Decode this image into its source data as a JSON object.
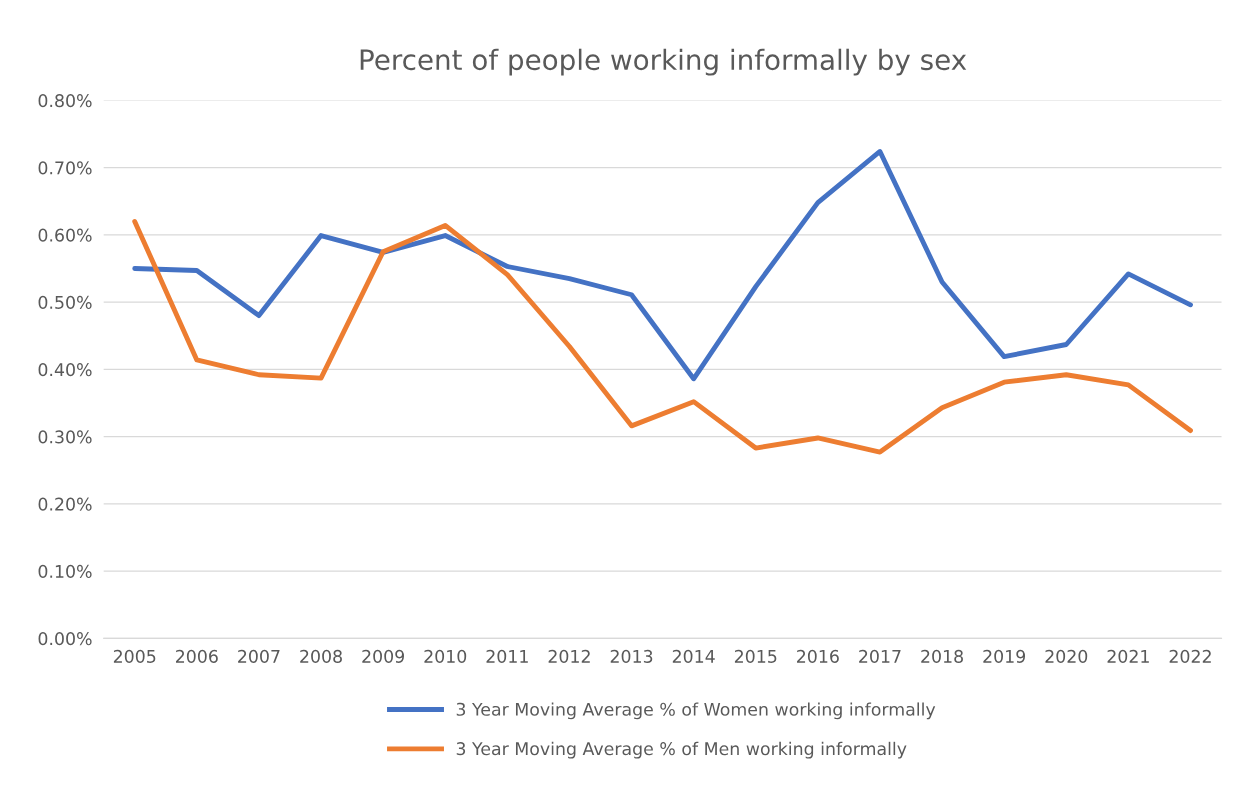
{
  "chart_data": {
    "type": "line",
    "title": "Percent of people working informally by sex",
    "categories": [
      "2005",
      "2006",
      "2007",
      "2008",
      "2009",
      "2010",
      "2011",
      "2012",
      "2013",
      "2014",
      "2015",
      "2016",
      "2017",
      "2018",
      "2019",
      "2020",
      "2021",
      "2022"
    ],
    "series": [
      {
        "name": "3 Year Moving Average % of Women working informally",
        "color": "#4472c4",
        "values": [
          0.55,
          0.547,
          0.48,
          0.599,
          0.574,
          0.599,
          0.553,
          0.535,
          0.511,
          0.386,
          0.523,
          0.648,
          0.724,
          0.53,
          0.419,
          0.437,
          0.542,
          0.496
        ]
      },
      {
        "name": "3 Year Moving Average % of Men working informally",
        "color": "#ed7d31",
        "values": [
          0.62,
          0.414,
          0.392,
          0.387,
          0.575,
          0.614,
          0.541,
          0.434,
          0.316,
          0.352,
          0.283,
          0.298,
          0.277,
          0.343,
          0.381,
          0.392,
          0.377,
          0.309
        ]
      }
    ],
    "ylim": [
      0,
      0.8
    ],
    "yticks": [
      {
        "value": 0,
        "label": "0.00%"
      },
      {
        "value": 0.1,
        "label": "0.10%"
      },
      {
        "value": 0.2,
        "label": "0.20%"
      },
      {
        "value": 0.3,
        "label": "0.30%"
      },
      {
        "value": 0.4,
        "label": "0.40%"
      },
      {
        "value": 0.5,
        "label": "0.50%"
      },
      {
        "value": 0.6,
        "label": "0.60%"
      },
      {
        "value": 0.7,
        "label": "0.70%"
      },
      {
        "value": 0.8,
        "label": "0.80%"
      }
    ],
    "grid": "y",
    "legend": "bottom",
    "marker": "none",
    "line_style": "solid"
  }
}
